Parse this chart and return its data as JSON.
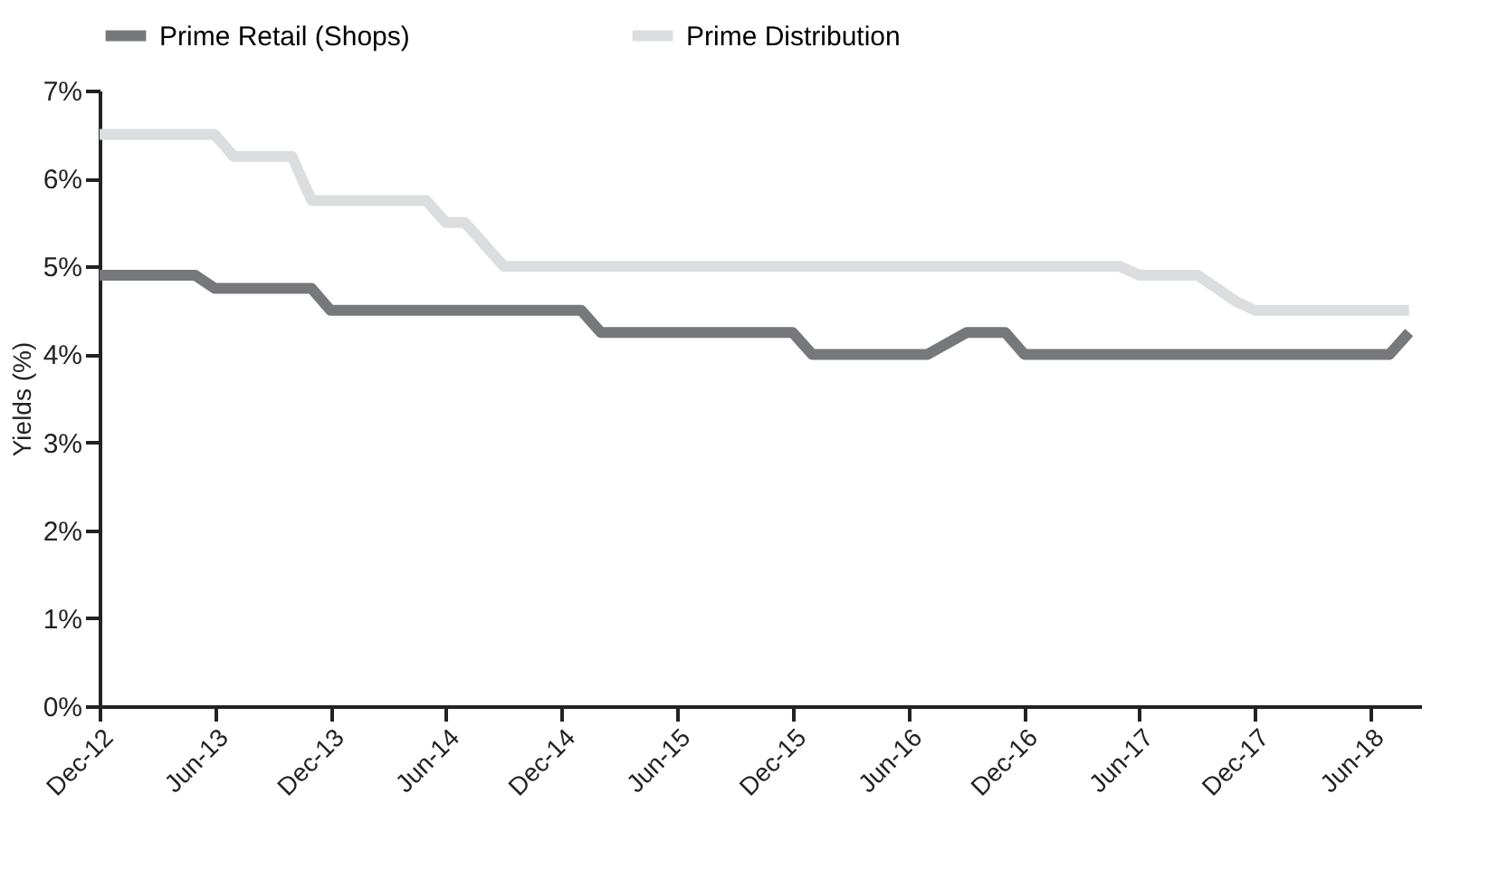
{
  "chart_data": {
    "type": "line",
    "ylabel": "Yields (%)",
    "legend": "top",
    "grid": false,
    "line_style": "solid",
    "marker": "none",
    "xlim": [
      "2012-12-01",
      "2018-08-20"
    ],
    "xticks": [
      {
        "value": "2012-12",
        "label": "Dec-12"
      },
      {
        "value": "2013-06",
        "label": "Jun-13"
      },
      {
        "value": "2013-12",
        "label": "Dec-13"
      },
      {
        "value": "2014-06",
        "label": "Jun-14"
      },
      {
        "value": "2014-12",
        "label": "Dec-14"
      },
      {
        "value": "2015-06",
        "label": "Jun-15"
      },
      {
        "value": "2015-12",
        "label": "Dec-15"
      },
      {
        "value": "2016-06",
        "label": "Jun-16"
      },
      {
        "value": "2016-12",
        "label": "Dec-16"
      },
      {
        "value": "2017-06",
        "label": "Jun-17"
      },
      {
        "value": "2017-12",
        "label": "Dec-17"
      },
      {
        "value": "2018-06",
        "label": "Jun-18"
      }
    ],
    "ylim": [
      0,
      7
    ],
    "yticks": [
      {
        "value": 0,
        "label": "0%"
      },
      {
        "value": 1,
        "label": "1%"
      },
      {
        "value": 2,
        "label": "2%"
      },
      {
        "value": 3,
        "label": "3%"
      },
      {
        "value": 4,
        "label": "4%"
      },
      {
        "value": 5,
        "label": "5%"
      },
      {
        "value": 6,
        "label": "6%"
      },
      {
        "value": 7,
        "label": "7%"
      }
    ],
    "series": [
      {
        "name": "Prime Retail (Shops)",
        "color": "#77787b",
        "x": [
          "2012-12",
          "2013-05",
          "2013-06",
          "2013-11",
          "2013-12",
          "2015-01",
          "2015-02",
          "2015-12",
          "2016-01",
          "2016-07",
          "2016-09",
          "2016-11",
          "2016-12",
          "2018-07",
          "2018-08"
        ],
        "values": [
          4.9,
          4.9,
          4.75,
          4.75,
          4.5,
          4.5,
          4.25,
          4.25,
          4.0,
          4.0,
          4.25,
          4.25,
          4.0,
          4.0,
          4.25
        ]
      },
      {
        "name": "Prime Distribution",
        "color": "#dcdddf",
        "x": [
          "2012-12",
          "2013-06",
          "2013-07",
          "2013-10",
          "2013-11",
          "2014-05",
          "2014-06",
          "2014-07",
          "2014-09",
          "2017-05",
          "2017-06",
          "2017-09",
          "2017-11",
          "2017-12",
          "2018-08"
        ],
        "values": [
          6.5,
          6.5,
          6.25,
          6.25,
          5.75,
          5.75,
          5.5,
          5.5,
          5.0,
          5.0,
          4.9,
          4.9,
          4.6,
          4.5,
          4.5
        ]
      }
    ]
  }
}
